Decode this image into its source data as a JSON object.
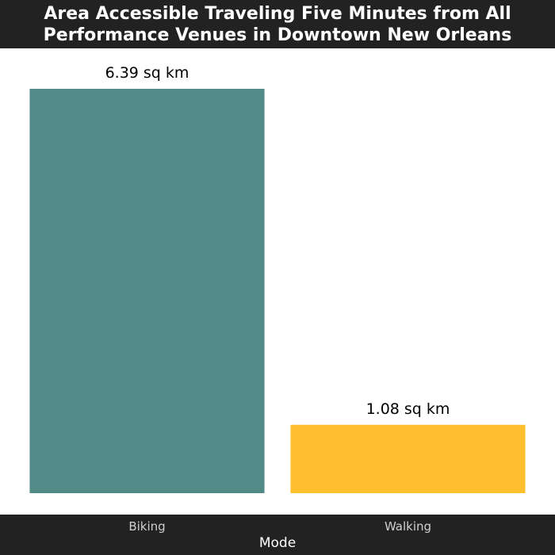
{
  "chart_data": {
    "type": "bar",
    "title_lines": [
      "Area Accessible Traveling Five Minutes from All",
      "Performance Venues in Downtown New Orleans"
    ],
    "categories": [
      "Biking",
      "Walking"
    ],
    "values": [
      6.39,
      1.08
    ],
    "data_labels": [
      "6.39 sq km",
      "1.08 sq km"
    ],
    "colors": [
      "#528a87",
      "#fdbf2d"
    ],
    "xlabel": "Mode",
    "ylabel": "",
    "ylim": [
      0,
      6.39
    ],
    "grid": false,
    "legend": "none"
  }
}
